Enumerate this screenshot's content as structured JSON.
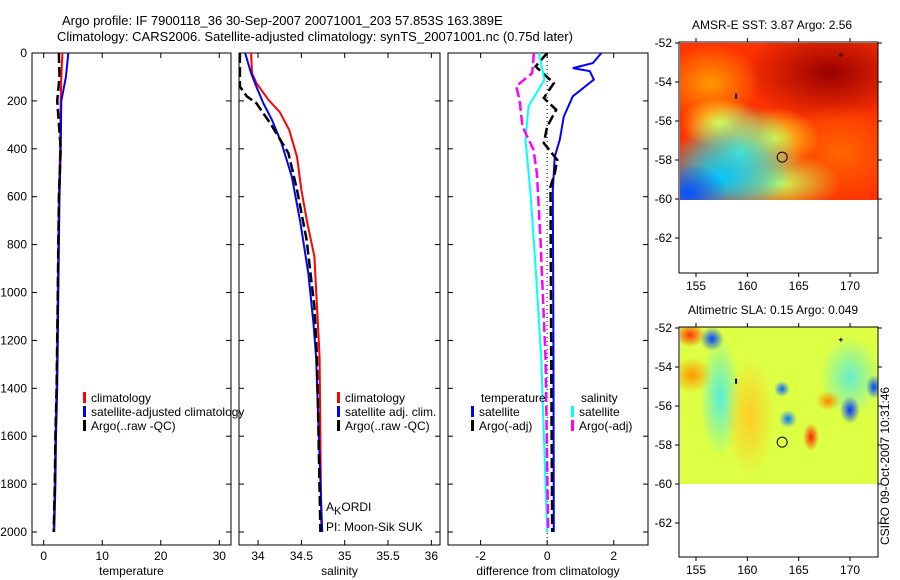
{
  "title_line1": "Argo profile: IF 7900118_36 30-Sep-2007 20071001_203 57.853S 163.389E",
  "title_line2": "Climatology: CARS2006. Satellite-adjusted climatology: synTS_20071001.nc (0.75d later)",
  "annotations": {
    "akordi_a": "A",
    "akordi_k": "K",
    "akordi_rest": "ORDI",
    "pi": "PI: Moon-Sik SUK"
  },
  "footer": "CSIRO 09-Oct-2007 10:31:46",
  "colors": {
    "climatology": "#ff0000",
    "satellite": "#0000ff",
    "argo": "#000000",
    "sal_satellite": "#00ffff",
    "sal_argo": "#ff00ff"
  },
  "chart_data": [
    {
      "type": "line",
      "xlabel": "temperature",
      "ylabel": "",
      "xlim": [
        -2,
        32
      ],
      "ylim": [
        2050,
        0
      ],
      "xticks": [
        "0",
        "10",
        "20",
        "30"
      ],
      "xtick_values": [
        0,
        10,
        20,
        30
      ],
      "yticks": [
        "0",
        "200",
        "400",
        "600",
        "800",
        "1000",
        "1200",
        "1400",
        "1600",
        "1800",
        "2000"
      ],
      "legend": [
        "climatology",
        "satellite-adjusted climatology",
        "Argo(..raw -QC)"
      ],
      "depth": [
        0,
        100,
        200,
        400,
        600,
        800,
        1000,
        1200,
        1400,
        1600,
        1800,
        2000
      ],
      "series": [
        {
          "name": "climatology",
          "color": "#ff0000",
          "dash": false,
          "values": [
            3.2,
            3.0,
            2.9,
            2.8,
            2.6,
            2.5,
            2.4,
            2.3,
            2.2,
            2.0,
            1.9,
            1.7
          ]
        },
        {
          "name": "satellite-adjusted climatology",
          "color": "#0000ff",
          "dash": false,
          "values": [
            4.2,
            3.8,
            3.0,
            2.9,
            2.7,
            2.6,
            2.5,
            2.4,
            2.3,
            2.1,
            2.0,
            1.8
          ]
        },
        {
          "name": "Argo(..raw -QC)",
          "color": "#000000",
          "dash": true,
          "values": [
            2.6,
            2.7,
            2.3,
            2.9,
            2.6,
            2.5,
            2.4,
            2.3,
            2.2,
            2.0,
            1.9,
            1.7
          ]
        }
      ]
    },
    {
      "type": "line",
      "xlabel": "salinity",
      "xlim": [
        33.78,
        36.1
      ],
      "ylim": [
        2050,
        0
      ],
      "xticks": [
        "34",
        "34.5",
        "35",
        "35.5",
        "36"
      ],
      "xtick_values": [
        34,
        34.5,
        35,
        35.5,
        36
      ],
      "legend": [
        "climatology",
        "satellite adj. clim.",
        "Argo(..raw -QC)"
      ],
      "series": [
        {
          "name": "climatology",
          "color": "#ff0000",
          "dash": false,
          "depth": [
            0,
            84,
            125,
            196,
            246,
            321,
            433,
            572,
            711,
            850,
            1060,
            1270,
            2000
          ],
          "values": [
            33.92,
            33.93,
            33.98,
            34.12,
            34.25,
            34.36,
            34.45,
            34.5,
            34.57,
            34.65,
            34.68,
            34.71,
            34.73
          ]
        },
        {
          "name": "satellite adj. clim.",
          "color": "#0000ff",
          "dash": false,
          "depth": [
            0,
            84,
            140,
            209,
            279,
            376,
            516,
            711,
            920,
            1130,
            1270,
            2000
          ],
          "values": [
            33.85,
            33.92,
            33.98,
            34.06,
            34.16,
            34.27,
            34.39,
            34.49,
            34.58,
            34.64,
            34.67,
            34.74
          ]
        },
        {
          "name": "Argo(..raw -QC)",
          "color": "#000000",
          "dash": true,
          "depth": [
            0,
            140,
            181,
            209,
            293,
            418,
            571,
            780,
            1060,
            1270,
            2000
          ],
          "values": [
            33.79,
            33.79,
            33.87,
            33.98,
            34.14,
            34.35,
            34.45,
            34.56,
            34.65,
            34.68,
            34.72
          ]
        }
      ]
    },
    {
      "type": "line",
      "xlabel": "difference from climatology",
      "xlim": [
        -2.98,
        3.03
      ],
      "ylim": [
        2050,
        0
      ],
      "xticks": [
        "-2",
        "0",
        "2"
      ],
      "xtick_values": [
        -2,
        0,
        2
      ],
      "legend_groups": [
        {
          "title": "temperature",
          "items": [
            "satellite",
            "Argo(-adj)"
          ]
        },
        {
          "title": "salinity",
          "items": [
            "satellite",
            "Argo(-adj)"
          ]
        }
      ],
      "series": [
        {
          "name": "temperature satellite",
          "color": "#0000ff",
          "dash": false,
          "depth": [
            0,
            42,
            63,
            76,
            111,
            181,
            265,
            362,
            432,
            572,
            1270,
            2000
          ],
          "values": [
            1.63,
            1.37,
            0.77,
            1.28,
            1.4,
            0.77,
            0.5,
            0.38,
            0.23,
            0.17,
            0.19,
            0.2
          ]
        },
        {
          "name": "temperature Argo(-adj)",
          "color": "#000000",
          "dash": true,
          "depth": [
            0,
            56,
            126,
            188,
            237,
            307,
            376,
            446,
            502,
            558,
            1270,
            2000
          ],
          "values": [
            0.0,
            -0.35,
            0.2,
            -0.1,
            0.27,
            0.0,
            -0.1,
            0.3,
            0.23,
            0.1,
            0.12,
            0.15
          ]
        },
        {
          "name": "salinity satellite",
          "color": "#00ffff",
          "dash": false,
          "depth": [
            0,
            111,
            223,
            362,
            571,
            850,
            1270,
            2000
          ],
          "values": [
            -0.25,
            -0.08,
            -0.56,
            -0.65,
            -0.51,
            -0.37,
            -0.18,
            0.0
          ]
        },
        {
          "name": "salinity Argo(-adj)",
          "color": "#ff00ff",
          "dash": true,
          "depth": [
            0,
            84,
            139,
            195,
            307,
            404,
            502,
            780,
            1270,
            2000
          ],
          "values": [
            -0.4,
            -0.45,
            -0.93,
            -0.83,
            -0.74,
            -0.41,
            -0.31,
            -0.2,
            -0.05,
            0.03
          ]
        }
      ]
    }
  ],
  "maps": [
    {
      "title": "AMSR-E SST: 3.87 Argo: 2.56",
      "xticks": [
        "155",
        "160",
        "165",
        "170"
      ],
      "yticks": [
        "-52",
        "-54",
        "-56",
        "-58",
        "-60",
        "-62"
      ],
      "marker": {
        "lon": 163.389,
        "lat": -57.853
      }
    },
    {
      "title": "Altimetric SLA: 0.15 Argo: 0.049",
      "xticks": [
        "155",
        "160",
        "165",
        "170"
      ],
      "yticks": [
        "-52",
        "-54",
        "-56",
        "-58",
        "-60",
        "-62"
      ],
      "marker": {
        "lon": 163.389,
        "lat": -57.853
      }
    }
  ]
}
